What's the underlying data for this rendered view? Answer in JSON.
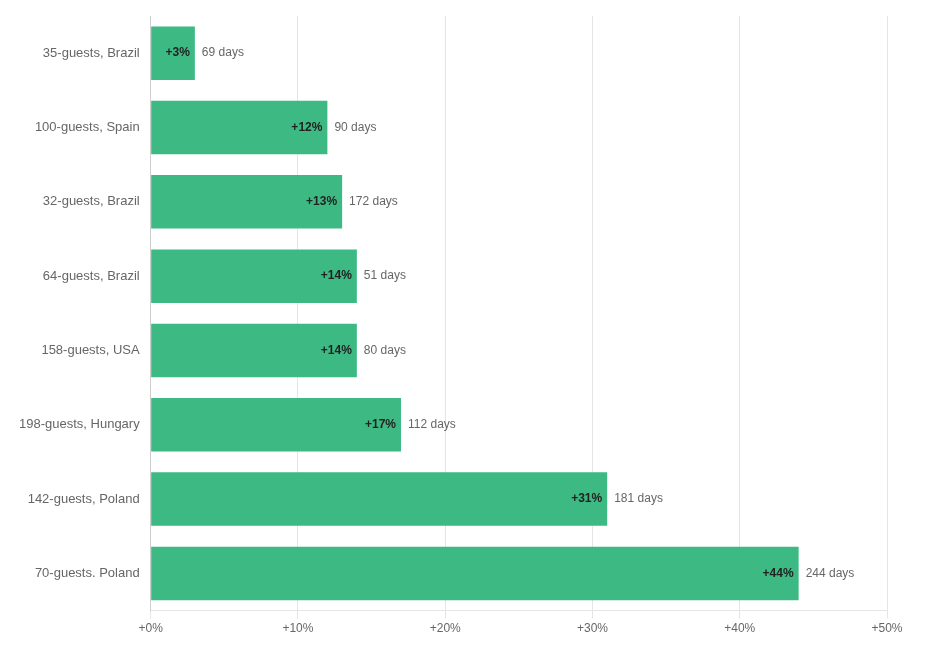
{
  "chart_data": {
    "type": "bar",
    "orientation": "horizontal",
    "categories": [
      "35-guests, Brazil",
      "100-guests, Spain",
      "32-guests, Brazil",
      "64-guests, Brazil",
      "158-guests, USA",
      "198-guests, Hungary",
      "142-guests, Poland",
      "70-guests. Poland"
    ],
    "values": [
      3,
      12,
      13,
      14,
      14,
      17,
      31,
      44
    ],
    "value_labels": [
      "+3%",
      "+12%",
      "+13%",
      "+14%",
      "+14%",
      "+17%",
      "+31%",
      "+44%"
    ],
    "data_labels": true,
    "annotations": [
      "69 days",
      "90 days",
      "172 days",
      "51 days",
      "80 days",
      "112 days",
      "181 days",
      "244 days"
    ],
    "color": "#3dba84",
    "xlim": [
      0,
      50
    ],
    "xticks": [
      {
        "value": 0,
        "label": "+0%"
      },
      {
        "value": 10,
        "label": "+10%"
      },
      {
        "value": 20,
        "label": "+20%"
      },
      {
        "value": 30,
        "label": "+30%"
      },
      {
        "value": 40,
        "label": "+40%"
      },
      {
        "value": 50,
        "label": "+50%"
      }
    ],
    "grid": true
  }
}
